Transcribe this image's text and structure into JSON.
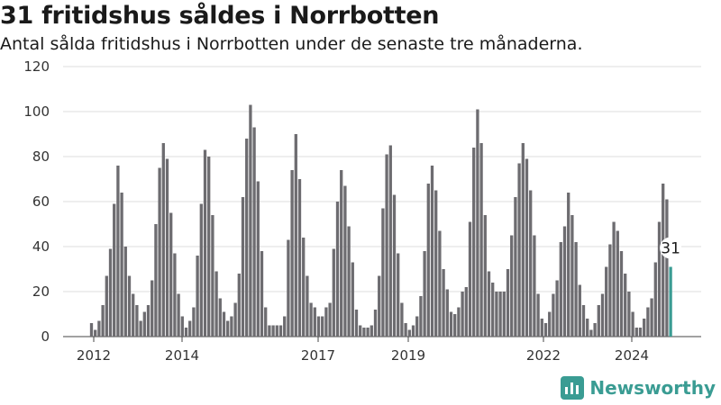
{
  "header": {
    "title": "31 fritidshus såldes i Norrbotten",
    "subtitle": "Antal sålda fritidshus i Norrbotten under de senaste tre månaderna."
  },
  "brand": {
    "name": "Newsworthy"
  },
  "colors": {
    "bar": "#6d6c70",
    "highlight": "#3a9c93",
    "grid": "#dcdcdc"
  },
  "chart_data": {
    "type": "bar",
    "title": "31 fritidshus såldes i Norrbotten",
    "subtitle": "Antal sålda fritidshus i Norrbotten under de senaste tre månaderna.",
    "xlabel": "",
    "ylabel": "",
    "ylim": [
      0,
      120
    ],
    "yticks": [
      0,
      20,
      40,
      60,
      80,
      100,
      120
    ],
    "xticks": [
      "2012",
      "2014",
      "2017",
      "2019",
      "2022",
      "2024"
    ],
    "grid": true,
    "highlight_label": "31",
    "values": [
      6,
      3,
      7,
      14,
      27,
      39,
      59,
      76,
      64,
      40,
      27,
      19,
      14,
      7,
      11,
      14,
      25,
      50,
      75,
      86,
      79,
      55,
      37,
      19,
      9,
      4,
      7,
      13,
      36,
      59,
      83,
      80,
      54,
      29,
      17,
      11,
      7,
      9,
      15,
      28,
      62,
      88,
      103,
      93,
      69,
      38,
      13,
      5,
      5,
      5,
      5,
      9,
      43,
      74,
      90,
      70,
      44,
      27,
      15,
      13,
      9,
      9,
      13,
      15,
      39,
      60,
      74,
      67,
      49,
      33,
      12,
      5,
      4,
      4,
      5,
      12,
      27,
      57,
      81,
      85,
      63,
      37,
      15,
      6,
      3,
      5,
      9,
      18,
      38,
      68,
      76,
      65,
      47,
      30,
      21,
      11,
      10,
      13,
      20,
      22,
      51,
      84,
      101,
      86,
      54,
      29,
      24,
      20,
      20,
      20,
      30,
      45,
      62,
      77,
      86,
      79,
      65,
      45,
      19,
      8,
      6,
      11,
      19,
      25,
      42,
      49,
      64,
      54,
      42,
      23,
      14,
      8,
      3,
      6,
      14,
      19,
      31,
      41,
      51,
      47,
      38,
      28,
      20,
      11,
      4,
      4,
      8,
      13,
      17,
      33,
      51,
      68,
      61,
      31
    ]
  }
}
